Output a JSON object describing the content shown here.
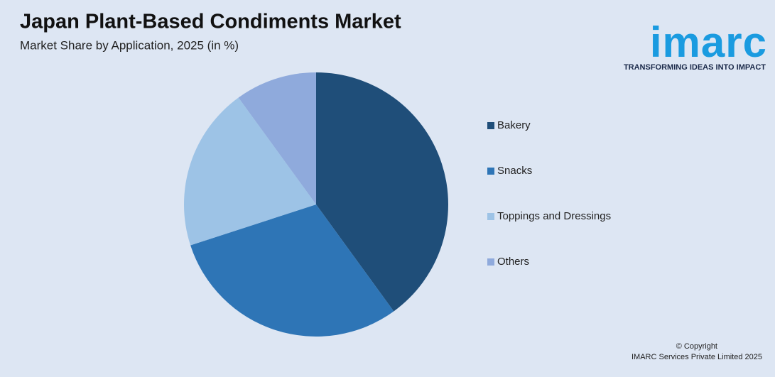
{
  "chart_data": {
    "type": "pie",
    "title": "Japan Plant-Based Condiments Market",
    "subtitle": "Market Share by Application, 2025 (in %)",
    "categories": [
      "Bakery",
      "Snacks",
      "Toppings and Dressings",
      "Others"
    ],
    "values": [
      40,
      30,
      20,
      10
    ],
    "colors": [
      "#1f4e79",
      "#2e75b6",
      "#9dc3e6",
      "#8faadc"
    ],
    "legend": "right"
  },
  "logo": {
    "name": "imarc",
    "tagline": "TRANSFORMING IDEAS INTO IMPACT"
  },
  "footer": {
    "copyright": "© Copyright",
    "owner": "IMARC Services Private Limited 2025"
  }
}
